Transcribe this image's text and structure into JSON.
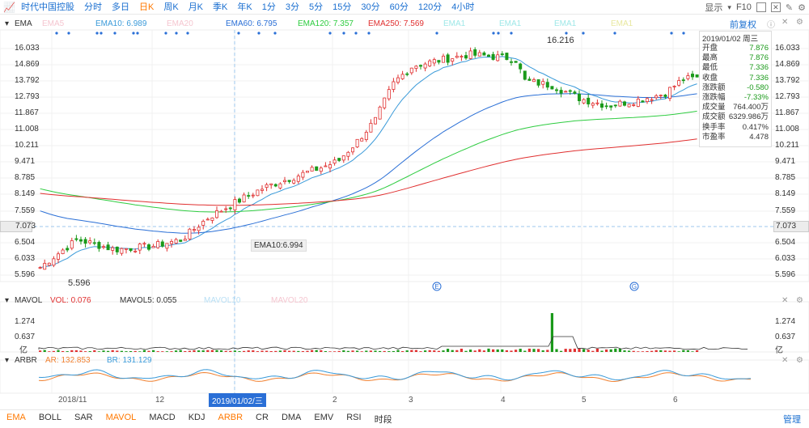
{
  "toolbar": {
    "stock_name": "时代中国控股",
    "tabs": [
      "分时",
      "多日",
      "日K",
      "周K",
      "月K",
      "季K",
      "年K",
      "1分",
      "3分",
      "5分",
      "15分",
      "30分",
      "60分",
      "120分",
      "4小时"
    ],
    "active_tab": "日K",
    "show_label": "显示",
    "fq_label": "F10",
    "restore_label": "前复权"
  },
  "main_panel": {
    "title": "EMA",
    "legend": [
      {
        "label": "EMA5",
        "color": "#f5c6d0"
      },
      {
        "label": "EMA10: 6.989",
        "color": "#3a9ad9"
      },
      {
        "label": "EMA20",
        "color": "#f5c6d0"
      },
      {
        "label": "EMA60: 6.795",
        "color": "#2a6fd6"
      },
      {
        "label": "EMA120: 7.357",
        "color": "#2ecc40"
      },
      {
        "label": "EMA250: 7.569",
        "color": "#e03030"
      },
      {
        "label": "EMA1",
        "color": "#9fe8e8"
      },
      {
        "label": "EMA1",
        "color": "#9fe8e8"
      },
      {
        "label": "EMA1",
        "color": "#9fe8e8"
      },
      {
        "label": "EMA1",
        "color": "#e8e89f"
      }
    ],
    "price_ticks": [
      "16.033",
      "14.869",
      "13.792",
      "12.793",
      "11.867",
      "11.008",
      "10.211",
      "9.471",
      "8.785",
      "8.149",
      "7.559",
      "7.073",
      "6.504",
      "6.033",
      "5.596"
    ],
    "high_label": "16.216",
    "low_label": "5.596",
    "ema_tooltip": "EMA10:6.994",
    "cross_price": "7.073",
    "event_markers": [
      "E",
      "G"
    ]
  },
  "info_box": {
    "date": "2019/01/02 周三",
    "rows": [
      {
        "label": "开盘",
        "value": "7.876",
        "color": "green"
      },
      {
        "label": "最高",
        "value": "7.876",
        "color": "green"
      },
      {
        "label": "最低",
        "value": "7.336",
        "color": "green"
      },
      {
        "label": "收盘",
        "value": "7.336",
        "color": "green"
      },
      {
        "label": "涨跌额",
        "value": "-0.580",
        "color": "green"
      },
      {
        "label": "涨跌幅",
        "value": "-7.33%",
        "color": "green"
      },
      {
        "label": "成交量",
        "value": "764.400万",
        "color": "normal"
      },
      {
        "label": "成交额",
        "value": "6329.986万",
        "color": "normal"
      },
      {
        "label": "换手率",
        "value": "0.417%",
        "color": "normal"
      },
      {
        "label": "市盈率",
        "value": "4.478",
        "color": "normal"
      }
    ]
  },
  "mavol_panel": {
    "title": "MAVOL",
    "legend": [
      {
        "label": "VOL: 0.076",
        "color": "#e03030"
      },
      {
        "label": "MAVOL5: 0.055",
        "color": "#333333"
      },
      {
        "label": "MAVOL10",
        "color": "#b8dff5"
      },
      {
        "label": "MAVOL20",
        "color": "#f5c6d0"
      }
    ],
    "ticks": [
      "1.274",
      "0.637",
      "亿"
    ]
  },
  "arbr_panel": {
    "title": "ARBR",
    "legend": [
      {
        "label": "AR: 132.853",
        "color": "#f08030"
      },
      {
        "label": "BR: 131.129",
        "color": "#3a9ad9"
      }
    ]
  },
  "x_axis": {
    "labels": [
      "2018/11",
      "12",
      "2019/01/02/三",
      "2",
      "3",
      "4",
      "5",
      "6"
    ]
  },
  "bottom_bar": {
    "indicators": [
      {
        "label": "EMA",
        "highlight": true
      },
      {
        "label": "BOLL",
        "highlight": false
      },
      {
        "label": "SAR",
        "highlight": false
      },
      {
        "label": "MAVOL",
        "highlight": true
      },
      {
        "label": "MACD",
        "highlight": false
      },
      {
        "label": "KDJ",
        "highlight": false
      },
      {
        "label": "ARBR",
        "highlight": true
      },
      {
        "label": "CR",
        "highlight": false
      },
      {
        "label": "DMA",
        "highlight": false
      },
      {
        "label": "EMV",
        "highlight": false
      },
      {
        "label": "RSI",
        "highlight": false
      },
      {
        "label": "时段",
        "highlight": false
      }
    ],
    "manage_label": "管理"
  },
  "colors": {
    "up": "#e03030",
    "down": "#1a9a1a",
    "accent": "#1a6fd0",
    "active": "#ff7800"
  }
}
